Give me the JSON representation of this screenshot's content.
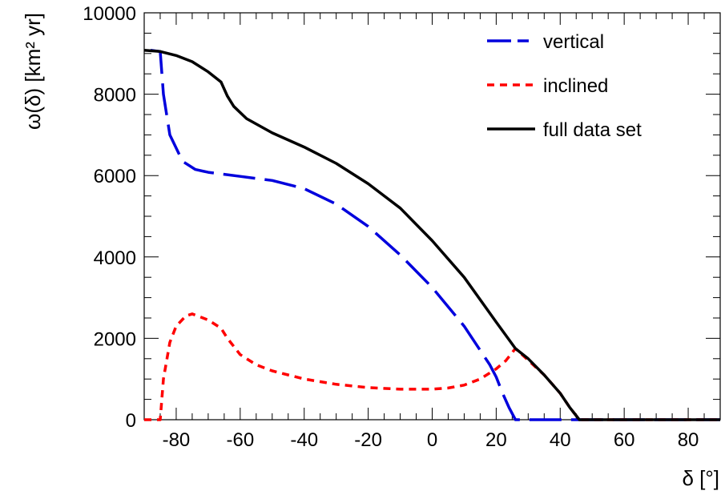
{
  "chart_data": {
    "type": "line",
    "xlabel": "δ [°]",
    "ylabel": "ω(δ)  [km² yr]",
    "xlim": [
      -90,
      90
    ],
    "ylim": [
      0,
      10000
    ],
    "x_ticks": [
      -80,
      -60,
      -40,
      -20,
      0,
      20,
      40,
      60,
      80
    ],
    "y_ticks": [
      0,
      2000,
      4000,
      6000,
      8000,
      10000
    ],
    "grid": false,
    "legend_position": "top-right",
    "series": [
      {
        "name": "vertical",
        "color": "#0000dd",
        "style": "long-dash",
        "points": [
          [
            -88,
            9080
          ],
          [
            -85,
            9050
          ],
          [
            -84,
            8000
          ],
          [
            -82,
            7000
          ],
          [
            -78,
            6350
          ],
          [
            -74,
            6150
          ],
          [
            -70,
            6080
          ],
          [
            -60,
            5980
          ],
          [
            -50,
            5880
          ],
          [
            -40,
            5680
          ],
          [
            -30,
            5300
          ],
          [
            -20,
            4750
          ],
          [
            -10,
            4050
          ],
          [
            0,
            3250
          ],
          [
            10,
            2300
          ],
          [
            18,
            1350
          ],
          [
            20,
            1050
          ],
          [
            22,
            650
          ],
          [
            24,
            300
          ],
          [
            26,
            0
          ],
          [
            90,
            0
          ]
        ]
      },
      {
        "name": "inclined",
        "color": "#ff0000",
        "style": "short-dash",
        "points": [
          [
            -90,
            0
          ],
          [
            -85,
            0
          ],
          [
            -84,
            1000
          ],
          [
            -82,
            1900
          ],
          [
            -80,
            2300
          ],
          [
            -77,
            2550
          ],
          [
            -75,
            2600
          ],
          [
            -70,
            2450
          ],
          [
            -66,
            2250
          ],
          [
            -64,
            2000
          ],
          [
            -60,
            1600
          ],
          [
            -55,
            1350
          ],
          [
            -50,
            1200
          ],
          [
            -40,
            1000
          ],
          [
            -30,
            870
          ],
          [
            -20,
            790
          ],
          [
            -10,
            750
          ],
          [
            0,
            750
          ],
          [
            5,
            780
          ],
          [
            10,
            850
          ],
          [
            15,
            1000
          ],
          [
            20,
            1250
          ],
          [
            23,
            1450
          ],
          [
            26,
            1750
          ],
          [
            35,
            1100
          ],
          [
            40,
            650
          ],
          [
            43,
            300
          ],
          [
            46,
            0
          ],
          [
            90,
            0
          ]
        ]
      },
      {
        "name": "full data set",
        "color": "#000000",
        "style": "solid",
        "points": [
          [
            -90,
            9080
          ],
          [
            -85,
            9050
          ],
          [
            -80,
            8950
          ],
          [
            -75,
            8800
          ],
          [
            -70,
            8550
          ],
          [
            -66,
            8300
          ],
          [
            -64,
            7950
          ],
          [
            -62,
            7700
          ],
          [
            -58,
            7400
          ],
          [
            -50,
            7050
          ],
          [
            -40,
            6700
          ],
          [
            -30,
            6300
          ],
          [
            -20,
            5800
          ],
          [
            -10,
            5200
          ],
          [
            0,
            4400
          ],
          [
            10,
            3500
          ],
          [
            20,
            2400
          ],
          [
            26,
            1750
          ],
          [
            30,
            1500
          ],
          [
            35,
            1100
          ],
          [
            40,
            650
          ],
          [
            43,
            300
          ],
          [
            46,
            0
          ],
          [
            90,
            0
          ]
        ]
      }
    ]
  }
}
